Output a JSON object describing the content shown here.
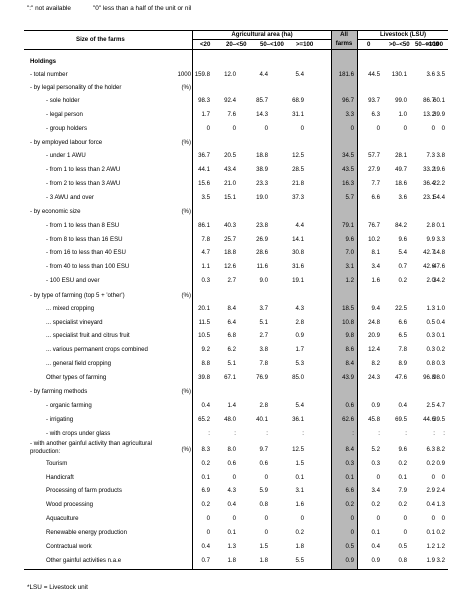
{
  "notes": {
    "not_available": "\":\" not available",
    "less_than_half": "\"0\" less than a half of the unit or nil"
  },
  "header": {
    "size_col": "Size of the farms",
    "agri_area": "Agricultural area (ha)",
    "all": "All",
    "farms": "farms",
    "livestock": "Livestock (LSU)",
    "agri_sub": [
      "<20",
      "20–<50",
      "50–<100",
      ">=100"
    ],
    "live_sub": [
      "0",
      ">0–<50",
      "50–<100",
      ">=100"
    ]
  },
  "rows": [
    {
      "label": "Holdings",
      "unit": "",
      "values": [],
      "style": "bold"
    },
    {
      "label": "- total number",
      "unit": "1000",
      "values": [
        "159.8",
        "12.0",
        "4.4",
        "5.4",
        "181.6",
        "44.5",
        "130.1",
        "3.6",
        "3.5"
      ]
    },
    {
      "label": "- by legal personality of the holder",
      "unit": "(%)",
      "values": []
    },
    {
      "label": "- sole holder",
      "unit": "",
      "values": [
        "98.3",
        "92.4",
        "85.7",
        "68.9",
        "96.7",
        "93.7",
        "99.0",
        "86.7",
        "60.1"
      ],
      "indent": 2
    },
    {
      "label": "- legal person",
      "unit": "",
      "values": [
        "1.7",
        "7.6",
        "14.3",
        "31.1",
        "3.3",
        "6.3",
        "1.0",
        "13.2",
        "39.9"
      ],
      "indent": 2
    },
    {
      "label": "- group holders",
      "unit": "",
      "values": [
        "0",
        "0",
        "0",
        "0",
        "0",
        "0",
        "0",
        "0",
        "0"
      ],
      "indent": 2
    },
    {
      "label": "- by employed labour force",
      "unit": "(%)",
      "values": []
    },
    {
      "label": "- under 1 AWU",
      "unit": "",
      "values": [
        "36.7",
        "20.5",
        "18.8",
        "12.5",
        "34.5",
        "57.7",
        "28.1",
        "7.3",
        "3.8"
      ],
      "indent": 2
    },
    {
      "label": "- from 1 to less than 2 AWU",
      "unit": "",
      "values": [
        "44.1",
        "43.4",
        "38.9",
        "28.5",
        "43.5",
        "27.9",
        "49.7",
        "33.2",
        "19.6"
      ],
      "indent": 2
    },
    {
      "label": "- from 2 to less than 3 AWU",
      "unit": "",
      "values": [
        "15.6",
        "21.0",
        "23.3",
        "21.8",
        "16.3",
        "7.7",
        "18.6",
        "36.4",
        "22.2"
      ],
      "indent": 2
    },
    {
      "label": "- 3 AWU and over",
      "unit": "",
      "values": [
        "3.5",
        "15.1",
        "19.0",
        "37.3",
        "5.7",
        "6.6",
        "3.6",
        "23.1",
        "54.4"
      ],
      "indent": 2
    },
    {
      "label": "- by economic size",
      "unit": "(%)",
      "values": []
    },
    {
      "label": "- from 1 to less than 8 ESU",
      "unit": "",
      "values": [
        "86.1",
        "40.3",
        "23.8",
        "4.4",
        "79.1",
        "76.7",
        "84.2",
        "2.8",
        "0.1"
      ],
      "indent": 2
    },
    {
      "label": "- from 8 to less than 16 ESU",
      "unit": "",
      "values": [
        "7.8",
        "25.7",
        "26.9",
        "14.1",
        "9.6",
        "10.2",
        "9.6",
        "9.9",
        "3.3"
      ],
      "indent": 2
    },
    {
      "label": "- from 16 to less than 40 ESU",
      "unit": "",
      "values": [
        "4.7",
        "18.8",
        "28.6",
        "30.8",
        "7.0",
        "8.1",
        "5.4",
        "42.7",
        "14.8"
      ],
      "indent": 2
    },
    {
      "label": "- from 40 to less than 100 ESU",
      "unit": "",
      "values": [
        "1.1",
        "12.6",
        "11.6",
        "31.6",
        "3.1",
        "3.4",
        "0.7",
        "42.6",
        "47.6"
      ],
      "indent": 2
    },
    {
      "label": "- 100 ESU and over",
      "unit": "",
      "values": [
        "0.3",
        "2.7",
        "9.0",
        "19.1",
        "1.2",
        "1.6",
        "0.2",
        "2.0",
        "34.2"
      ],
      "indent": 2
    },
    {
      "label": "- by type of farming (top 5 + 'other')",
      "unit": "(%)",
      "values": []
    },
    {
      "label": "... mixed cropping",
      "unit": "",
      "values": [
        "20.1",
        "8.4",
        "3.7",
        "4.3",
        "18.5",
        "9.4",
        "22.5",
        "1.3",
        "1.0"
      ],
      "indent": 2
    },
    {
      "label": "... specialist vineyard",
      "unit": "",
      "values": [
        "11.5",
        "6.4",
        "5.1",
        "2.8",
        "10.8",
        "24.8",
        "6.6",
        "0.5",
        "0.4"
      ],
      "indent": 2
    },
    {
      "label": "... specialist fruit and citrus fruit",
      "unit": "",
      "values": [
        "10.5",
        "6.8",
        "2.7",
        "0.9",
        "9.8",
        "20.9",
        "6.5",
        "0.3",
        "0.1"
      ],
      "indent": 2
    },
    {
      "label": "... various permanent crops combined",
      "unit": "",
      "values": [
        "9.2",
        "6.2",
        "3.8",
        "1.7",
        "8.6",
        "12.4",
        "7.8",
        "0.3",
        "0.2"
      ],
      "indent": 2
    },
    {
      "label": "... general field cropping",
      "unit": "",
      "values": [
        "8.8",
        "5.1",
        "7.8",
        "5.3",
        "8.4",
        "8.2",
        "8.9",
        "0.8",
        "0.3"
      ],
      "indent": 2
    },
    {
      "label": "Other types of farming",
      "unit": "",
      "values": [
        "39.8",
        "67.1",
        "76.9",
        "85.0",
        "43.9",
        "24.3",
        "47.6",
        "96.8",
        "98.0"
      ],
      "indent": 2
    },
    {
      "label": "- by farming methods",
      "unit": "(%)",
      "values": []
    },
    {
      "label": "- organic farming",
      "unit": "",
      "values": [
        "0.4",
        "1.4",
        "2.8",
        "5.4",
        "0.6",
        "0.9",
        "0.4",
        "2.5",
        "4.7"
      ],
      "indent": 2
    },
    {
      "label": "- irrigating",
      "unit": "",
      "values": [
        "65.2",
        "48.0",
        "40.1",
        "36.1",
        "62.6",
        "45.8",
        "69.5",
        "44.6",
        "39.5"
      ],
      "indent": 2
    },
    {
      "label": "- with crops under glass",
      "unit": "",
      "values": [
        ":",
        ":",
        ":",
        ":",
        ":",
        ":",
        ":",
        ":",
        ":"
      ],
      "indent": 2
    },
    {
      "label": "- with another gainful activity than agricultural production:",
      "unit": "(%)",
      "values": [
        "8.3",
        "8.0",
        "9.7",
        "12.5",
        "8.4",
        "5.2",
        "9.6",
        "6.3",
        "8.2"
      ],
      "wrap": true
    },
    {
      "label": "Tourism",
      "unit": "",
      "values": [
        "0.2",
        "0.6",
        "0.6",
        "1.5",
        "0.3",
        "0.3",
        "0.2",
        "0.2",
        "0.9"
      ],
      "indent": 2
    },
    {
      "label": "Handicraft",
      "unit": "",
      "values": [
        "0.1",
        "0",
        "0",
        "0.1",
        "0.1",
        "0",
        "0.1",
        "0",
        "0"
      ],
      "indent": 2
    },
    {
      "label": "Processing of farm products",
      "unit": "",
      "values": [
        "6.9",
        "4.3",
        "5.9",
        "3.1",
        "6.6",
        "3.4",
        "7.9",
        "2.9",
        "2.4"
      ],
      "indent": 2
    },
    {
      "label": "Wood processing",
      "unit": "",
      "values": [
        "0.2",
        "0.4",
        "0.8",
        "1.6",
        "0.2",
        "0.2",
        "0.2",
        "0.4",
        "1.3"
      ],
      "indent": 2
    },
    {
      "label": "Aquaculture",
      "unit": "",
      "values": [
        "0",
        "0",
        "0",
        "0",
        "0",
        "0",
        "0",
        "0",
        "0"
      ],
      "indent": 2
    },
    {
      "label": "Renewable energy production",
      "unit": "",
      "values": [
        "0",
        "0.1",
        "0",
        "0.2",
        "0",
        "0.1",
        "0",
        "0.1",
        "0.2"
      ],
      "indent": 2
    },
    {
      "label": "Contractual work",
      "unit": "",
      "values": [
        "0.4",
        "1.3",
        "1.5",
        "1.8",
        "0.5",
        "0.4",
        "0.5",
        "1.2",
        "1.2"
      ],
      "indent": 2
    },
    {
      "label": "Other gainful activities n.a.e",
      "unit": "",
      "values": [
        "0.7",
        "1.8",
        "1.8",
        "5.5",
        "0.9",
        "0.9",
        "0.8",
        "1.9",
        "3.2"
      ],
      "indent": 2
    }
  ],
  "footnote": "*LSU = Livestock unit"
}
